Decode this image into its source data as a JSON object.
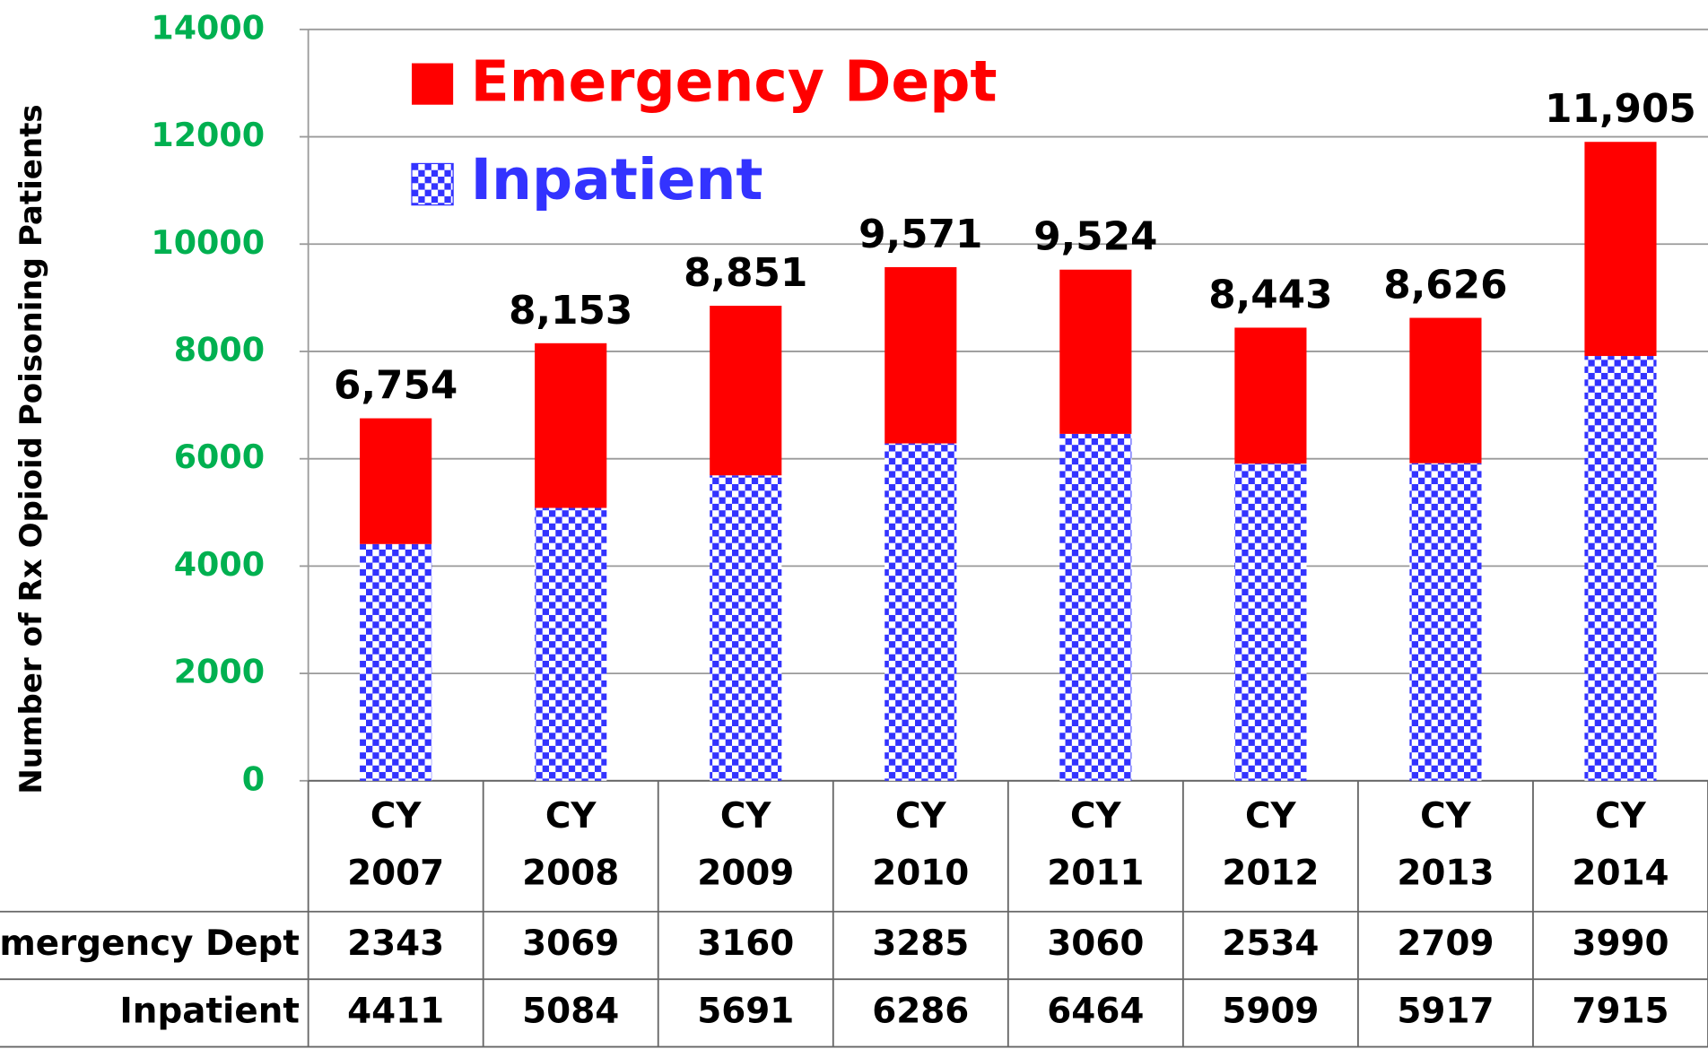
{
  "chart_data": {
    "type": "stacked_bar",
    "y_axis_label": "Number of Rx Opioid Poisoning Patients",
    "categories": [
      "CY 2007",
      "CY 2008",
      "CY 2009",
      "CY 2010",
      "CY 2011",
      "CY 2012",
      "CY 2013",
      "CY 2014"
    ],
    "series": [
      {
        "name": "Emergency Dept",
        "color": "#ff0000",
        "values": [
          2343,
          3069,
          3160,
          3285,
          3060,
          2534,
          2709,
          3990
        ]
      },
      {
        "name": "Inpatient",
        "color": "#3333ff",
        "values": [
          4411,
          5084,
          5691,
          6286,
          6464,
          5909,
          5917,
          7915
        ]
      }
    ],
    "totals": {
      "values": [
        6754,
        8153,
        8851,
        9571,
        9524,
        8443,
        8626,
        11905
      ],
      "value_labels": [
        "6,754",
        "8,153",
        "8,851",
        "9,571",
        "9,524",
        "8,443",
        "8,626",
        "11,905"
      ]
    },
    "ylim": [
      0,
      14000
    ],
    "yticks": [
      0,
      2000,
      4000,
      6000,
      8000,
      10000,
      12000,
      14000
    ],
    "grid": true
  }
}
